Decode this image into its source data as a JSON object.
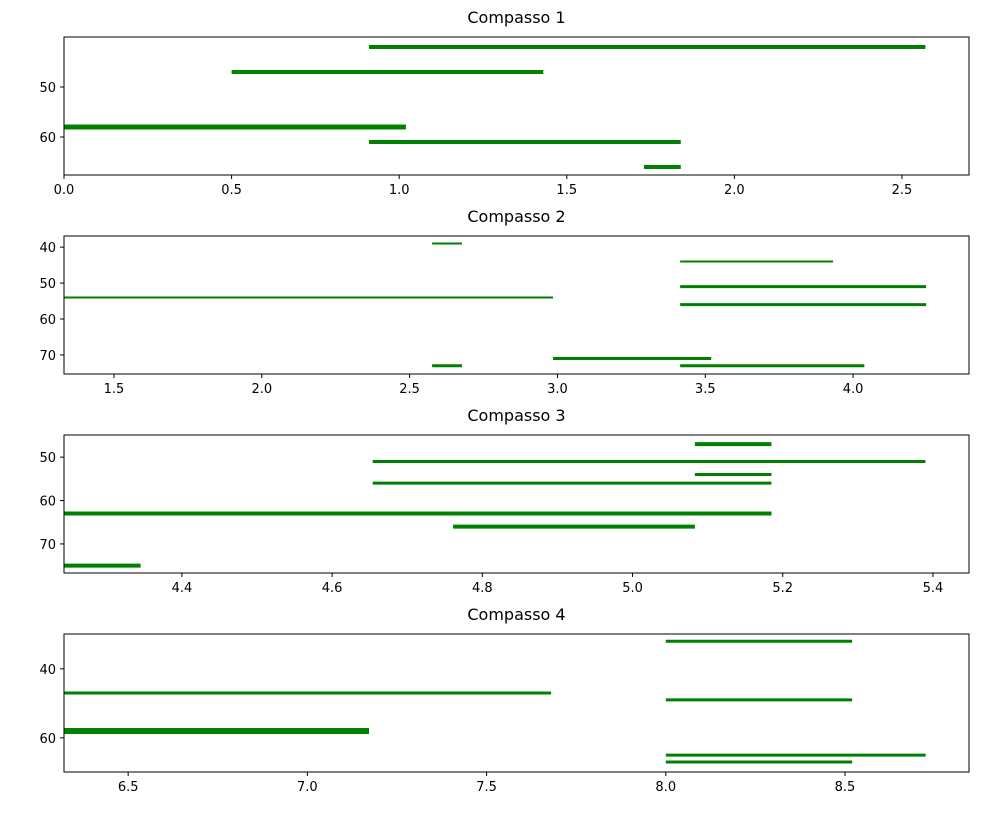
{
  "chart_data": [
    {
      "type": "segment",
      "title": "Compasso 1",
      "color": "green",
      "xlim": [
        0,
        2.7
      ],
      "xticks": [
        {
          "value": 0,
          "label": "0.0"
        },
        0.5,
        {
          "value": 1,
          "label": "1.0"
        },
        1.5,
        {
          "value": 2,
          "label": "2.0"
        },
        2.5
      ],
      "ylim": [
        67.6,
        40
      ],
      "yticks": [
        50,
        60
      ],
      "start": [
        0.91,
        0.5,
        0,
        0.91,
        1.73
      ],
      "end": [
        2.57,
        1.43,
        1.02,
        1.84,
        1.84
      ],
      "pitch": [
        42,
        47,
        58,
        61,
        66
      ],
      "linewidths": [
        4,
        4,
        5,
        4,
        4
      ]
    },
    {
      "type": "segment",
      "title": "Compasso 2",
      "color": "green",
      "xlim": [
        1.331,
        4.392
      ],
      "xticks": [
        1.5,
        {
          "value": 2,
          "label": "2.0"
        },
        2.5,
        {
          "value": 3,
          "label": "3.0"
        },
        3.5,
        {
          "value": 4,
          "label": "4.0"
        }
      ],
      "ylim": [
        75.3,
        36.9
      ],
      "yticks": [
        40,
        50,
        60,
        70
      ],
      "start": [
        2.576,
        3.415,
        3.415,
        1.331,
        3.415,
        2.985,
        2.576,
        3.415
      ],
      "end": [
        2.677,
        3.932,
        4.247,
        2.985,
        4.247,
        3.52,
        2.677,
        4.038
      ],
      "pitch": [
        39,
        44,
        51,
        54,
        56,
        71,
        73,
        73
      ],
      "linewidths": [
        2,
        2,
        3,
        2,
        3,
        3,
        3,
        3
      ]
    },
    {
      "type": "segment",
      "title": "Compasso 3",
      "color": "green",
      "xlim": [
        4.243,
        5.448
      ],
      "xticks": [
        4.4,
        4.6,
        4.8,
        {
          "value": 5,
          "label": "5.0"
        },
        5.2,
        5.4
      ],
      "ylim": [
        76.7,
        44.9
      ],
      "yticks": [
        50,
        60,
        70
      ],
      "start": [
        5.083,
        4.654,
        5.083,
        4.654,
        4.243,
        4.761,
        4.243
      ],
      "end": [
        5.185,
        5.39,
        5.185,
        5.185,
        5.185,
        5.083,
        4.345
      ],
      "pitch": [
        47,
        51,
        54,
        56,
        63,
        66,
        75
      ],
      "linewidths": [
        4,
        3,
        3,
        3,
        4,
        4,
        4
      ]
    },
    {
      "type": "segment",
      "title": "Compasso 4",
      "color": "green",
      "xlim": [
        6.321,
        8.846
      ],
      "xticks": [
        6.5,
        {
          "value": 7,
          "label": "7.0"
        },
        7.5,
        {
          "value": 8,
          "label": "8.0"
        },
        8.5
      ],
      "ylim": [
        69.9,
        29.9
      ],
      "yticks": [
        40,
        60
      ],
      "start": [
        8.0,
        6.321,
        8.0,
        6.321,
        8.0,
        8.0
      ],
      "end": [
        8.52,
        7.68,
        8.52,
        7.172,
        8.725,
        8.52
      ],
      "pitch": [
        32,
        47,
        49,
        58,
        65,
        67
      ],
      "linewidths": [
        3,
        3,
        3,
        6,
        3,
        3
      ]
    }
  ]
}
